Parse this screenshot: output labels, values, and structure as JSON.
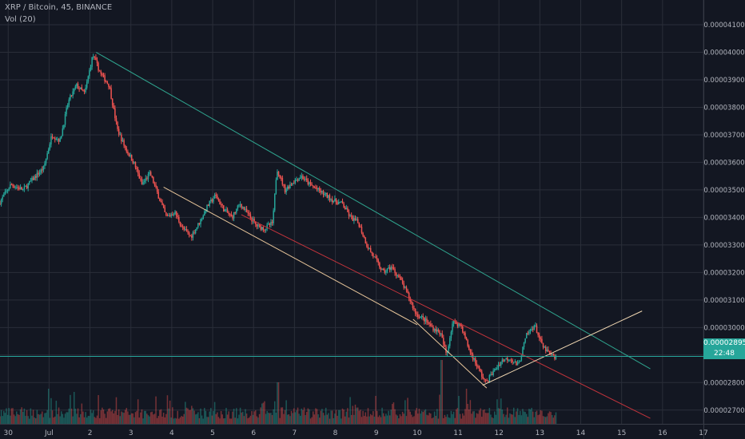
{
  "legend": {
    "title": "XRP / Bitcoin, 45, BINANCE",
    "volume": "Vol (20)"
  },
  "colors": {
    "background": "#131722",
    "grid": "#2a2e39",
    "up": "#26a69a",
    "down": "#ef5350",
    "axis_text": "#b2b5be",
    "trendline_teal": "#2fa58f",
    "trendline_red": "#c3343c",
    "trendline_orange": "#e7c59a",
    "trendline_cream": "#f4dab4",
    "last_price_line": "#26a69a"
  },
  "last_price": {
    "value": 2.895e-05,
    "label": "0.00002895",
    "countdown": "22:48"
  },
  "chart_data": {
    "type": "candlestick",
    "symbol": "XRP / Bitcoin",
    "interval": "45",
    "exchange": "BINANCE",
    "y_axis": {
      "side": "right",
      "ylim": [
        2.65e-05,
        4.19e-05
      ],
      "ticks": [
        4.1e-05,
        4e-05,
        3.9e-05,
        3.8e-05,
        3.7e-05,
        3.6e-05,
        3.5e-05,
        3.4e-05,
        3.3e-05,
        3.2e-05,
        3.1e-05,
        3e-05,
        2.9e-05,
        2.8e-05,
        2.7e-05
      ],
      "tick_labels": [
        "0.00004100",
        "0.00004000",
        "0.00003900",
        "0.00003800",
        "0.00003700",
        "0.00003600",
        "0.00003500",
        "0.00003400",
        "0.00003300",
        "0.00003200",
        "0.00003100",
        "0.00003000",
        "0.00002900",
        "0.00002800",
        "0.00002700"
      ]
    },
    "x_axis": {
      "range_days": [
        -0.2,
        17.0
      ],
      "ticks": [
        {
          "day": 0,
          "label": "30"
        },
        {
          "day": 1,
          "label": "Jul"
        },
        {
          "day": 2,
          "label": "2"
        },
        {
          "day": 3,
          "label": "3"
        },
        {
          "day": 4,
          "label": "4"
        },
        {
          "day": 5,
          "label": "5"
        },
        {
          "day": 6,
          "label": "6"
        },
        {
          "day": 7,
          "label": "7"
        },
        {
          "day": 8,
          "label": "8"
        },
        {
          "day": 9,
          "label": "9"
        },
        {
          "day": 10,
          "label": "10"
        },
        {
          "day": 11,
          "label": "11"
        },
        {
          "day": 12,
          "label": "12"
        },
        {
          "day": 13,
          "label": "13"
        },
        {
          "day": 14,
          "label": "14"
        },
        {
          "day": 15,
          "label": "15"
        },
        {
          "day": 16,
          "label": "16"
        },
        {
          "day": 17,
          "label": "17"
        }
      ]
    },
    "price_path": [
      [
        -0.2,
        3.45e-05
      ],
      [
        0.1,
        3.52e-05
      ],
      [
        0.4,
        3.5e-05
      ],
      [
        0.7,
        3.55e-05
      ],
      [
        0.9,
        3.58e-05
      ],
      [
        1.1,
        3.7e-05
      ],
      [
        1.3,
        3.68e-05
      ],
      [
        1.5,
        3.82e-05
      ],
      [
        1.7,
        3.88e-05
      ],
      [
        1.9,
        3.85e-05
      ],
      [
        2.1,
        3.99e-05
      ],
      [
        2.3,
        3.92e-05
      ],
      [
        2.5,
        3.88e-05
      ],
      [
        2.7,
        3.72e-05
      ],
      [
        2.9,
        3.65e-05
      ],
      [
        3.1,
        3.6e-05
      ],
      [
        3.3,
        3.52e-05
      ],
      [
        3.5,
        3.56e-05
      ],
      [
        3.7,
        3.48e-05
      ],
      [
        3.9,
        3.4e-05
      ],
      [
        4.1,
        3.42e-05
      ],
      [
        4.3,
        3.36e-05
      ],
      [
        4.5,
        3.33e-05
      ],
      [
        4.7,
        3.38e-05
      ],
      [
        4.9,
        3.44e-05
      ],
      [
        5.1,
        3.48e-05
      ],
      [
        5.3,
        3.43e-05
      ],
      [
        5.5,
        3.4e-05
      ],
      [
        5.7,
        3.45e-05
      ],
      [
        5.9,
        3.41e-05
      ],
      [
        6.1,
        3.37e-05
      ],
      [
        6.3,
        3.36e-05
      ],
      [
        6.5,
        3.38e-05
      ],
      [
        6.6,
        3.58e-05
      ],
      [
        6.8,
        3.5e-05
      ],
      [
        7.0,
        3.53e-05
      ],
      [
        7.2,
        3.55e-05
      ],
      [
        7.4,
        3.52e-05
      ],
      [
        7.6,
        3.5e-05
      ],
      [
        7.8,
        3.48e-05
      ],
      [
        8.0,
        3.46e-05
      ],
      [
        8.2,
        3.45e-05
      ],
      [
        8.4,
        3.4e-05
      ],
      [
        8.6,
        3.38e-05
      ],
      [
        8.8,
        3.3e-05
      ],
      [
        9.0,
        3.25e-05
      ],
      [
        9.2,
        3.2e-05
      ],
      [
        9.4,
        3.22e-05
      ],
      [
        9.6,
        3.18e-05
      ],
      [
        9.8,
        3.12e-05
      ],
      [
        10.0,
        3.05e-05
      ],
      [
        10.2,
        3.03e-05
      ],
      [
        10.4,
        3e-05
      ],
      [
        10.6,
        2.98e-05
      ],
      [
        10.75,
        2.9e-05
      ],
      [
        10.9,
        3.02e-05
      ],
      [
        11.1,
        3.01e-05
      ],
      [
        11.3,
        2.92e-05
      ],
      [
        11.5,
        2.86e-05
      ],
      [
        11.7,
        2.8e-05
      ],
      [
        11.9,
        2.84e-05
      ],
      [
        12.1,
        2.88e-05
      ],
      [
        12.3,
        2.89e-05
      ],
      [
        12.5,
        2.86e-05
      ],
      [
        12.7,
        2.97e-05
      ],
      [
        12.9,
        3.01e-05
      ],
      [
        13.1,
        2.93e-05
      ],
      [
        13.3,
        2.9e-05
      ],
      [
        13.4,
        2.89e-05
      ]
    ],
    "volume_spikes": [
      {
        "day": 1.0,
        "rel": 0.55
      },
      {
        "day": 1.6,
        "rel": 0.5
      },
      {
        "day": 2.2,
        "rel": 0.45
      },
      {
        "day": 6.6,
        "rel": 0.65
      },
      {
        "day": 10.6,
        "rel": 1.0
      },
      {
        "day": 11.2,
        "rel": 0.55
      }
    ],
    "trendlines": [
      {
        "name": "upper-resistance",
        "color": "teal",
        "from": [
          2.15,
          4e-05
        ],
        "to": [
          15.7,
          2.85e-05
        ]
      },
      {
        "name": "lower-support",
        "color": "red",
        "from": [
          5.7,
          3.41e-05
        ],
        "to": [
          15.7,
          2.67e-05
        ]
      },
      {
        "name": "wedge-support",
        "color": "orange",
        "from": [
          3.8,
          3.51e-05
        ],
        "to": [
          10.0,
          3.01e-05
        ]
      },
      {
        "name": "breakdown-line",
        "color": "orange",
        "from": [
          9.9,
          3.03e-05
        ],
        "to": [
          11.7,
          2.78e-05
        ]
      },
      {
        "name": "ascending-support",
        "color": "cream",
        "from": [
          11.6,
          2.79e-05
        ],
        "to": [
          15.5,
          3.06e-05
        ]
      }
    ]
  }
}
